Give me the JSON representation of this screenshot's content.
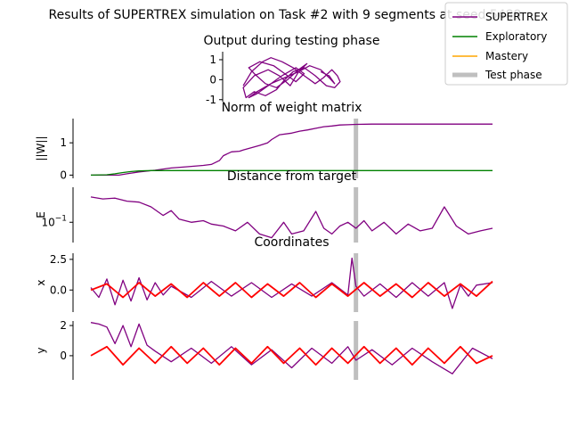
{
  "figure": {
    "suptitle": "Results of SUPERTREX simulation on Task #2 with 9 segments at seed 5489"
  },
  "legend": {
    "placement": "top-right",
    "entries": [
      {
        "label": "SUPERTREX",
        "color": "#800080",
        "style": "line"
      },
      {
        "label": "Exploratory",
        "color": "#008000",
        "style": "line"
      },
      {
        "label": "Mastery",
        "color": "#ffa500",
        "style": "line"
      },
      {
        "label": "Test phase",
        "color": "#bfbfbf",
        "style": "thick-line"
      }
    ]
  },
  "colors": {
    "supertrex": "#800080",
    "exploratory": "#008000",
    "mastery": "#ffa500",
    "target": "#ff0000",
    "test_phase": "#bfbfbf"
  },
  "chart_data": [
    {
      "type": "line",
      "title": "Output during testing phase",
      "xlabel": "",
      "ylabel": "",
      "ylim": [
        -1.1,
        1.4
      ],
      "y_ticks": [
        "1",
        "0",
        "-1"
      ],
      "description_series": [
        {
          "name": "SUPERTREX",
          "x": [
            -1.0,
            -0.7,
            -0.3,
            0.0,
            0.4,
            0.8,
            1.2,
            1.6,
            1.9,
            2.2,
            2.4,
            2.5,
            2.3,
            2.0,
            1.6,
            1.2,
            0.8,
            0.5,
            0.2,
            -0.2,
            -0.6,
            -0.9,
            -1.0,
            -0.6,
            -0.1,
            0.3,
            0.7,
            1.0,
            1.3,
            1.0,
            0.6,
            0.2,
            -0.2,
            -0.6,
            -0.8,
            -0.4,
            0.1,
            0.5,
            0.9,
            1.2,
            0.9,
            0.4,
            -0.1,
            -0.5,
            -0.8,
            -0.5,
            0.0,
            0.5,
            1.0,
            1.4,
            1.8,
            2.1,
            2.3,
            2.1,
            1.8
          ],
          "y": [
            -0.3,
            0.4,
            0.9,
            1.1,
            0.9,
            0.6,
            0.2,
            -0.2,
            0.1,
            0.5,
            0.2,
            -0.1,
            -0.4,
            -0.3,
            0.2,
            0.6,
            0.4,
            0.0,
            -0.5,
            -0.8,
            -0.6,
            -0.9,
            -0.4,
            0.2,
            0.5,
            0.2,
            -0.3,
            0.4,
            0.8,
            0.5,
            0.0,
            -0.4,
            -0.2,
            0.3,
            0.6,
            0.9,
            0.7,
            0.3,
            -0.1,
            0.3,
            0.6,
            0.2,
            -0.3,
            -0.7,
            -0.9,
            -0.6,
            -0.2,
            0.1,
            0.4,
            0.7,
            0.5,
            0.1,
            -0.2,
            0.2,
            0.4
          ]
        }
      ]
    },
    {
      "type": "line",
      "title": "Norm of weight matrix",
      "xlabel": "",
      "ylabel": "||W||",
      "ylim": [
        -0.1,
        1.75
      ],
      "y_ticks": [
        0,
        1
      ],
      "test_phase_at": 0.66,
      "series": [
        {
          "name": "SUPERTREX",
          "x": [
            0,
            0.04,
            0.07,
            0.09,
            0.12,
            0.16,
            0.2,
            0.24,
            0.28,
            0.3,
            0.32,
            0.33,
            0.35,
            0.37,
            0.38,
            0.4,
            0.42,
            0.44,
            0.45,
            0.47,
            0.5,
            0.52,
            0.54,
            0.56,
            0.58,
            0.6,
            0.62,
            0.64,
            0.66,
            0.7,
            0.8,
            0.9,
            1.0
          ],
          "y": [
            0.0,
            0.0,
            0.0,
            0.04,
            0.1,
            0.15,
            0.22,
            0.26,
            0.3,
            0.33,
            0.45,
            0.6,
            0.72,
            0.74,
            0.78,
            0.85,
            0.92,
            1.0,
            1.1,
            1.25,
            1.3,
            1.36,
            1.4,
            1.45,
            1.5,
            1.52,
            1.55,
            1.56,
            1.57,
            1.58,
            1.58,
            1.58,
            1.58
          ]
        },
        {
          "name": "Exploratory",
          "x": [
            0,
            0.04,
            0.06,
            0.08,
            0.1,
            0.12,
            0.15,
            0.2,
            0.3,
            0.4,
            0.5,
            0.66,
            0.8,
            1.0
          ],
          "y": [
            0.0,
            0.01,
            0.04,
            0.08,
            0.11,
            0.13,
            0.14,
            0.14,
            0.14,
            0.14,
            0.14,
            0.14,
            0.14,
            0.14
          ]
        }
      ]
    },
    {
      "type": "line",
      "title": "Distance from target",
      "xlabel": "",
      "ylabel": "E",
      "yscale": "log",
      "ylim": [
        0.03,
        0.8
      ],
      "y_ticks": [
        0.1
      ],
      "y_tick_labels": [
        "10^{-1}"
      ],
      "test_phase_at": 0.66,
      "series": [
        {
          "name": "SUPERTREX",
          "x": [
            0,
            0.03,
            0.06,
            0.09,
            0.12,
            0.15,
            0.18,
            0.2,
            0.22,
            0.25,
            0.28,
            0.3,
            0.33,
            0.36,
            0.39,
            0.42,
            0.45,
            0.48,
            0.5,
            0.53,
            0.56,
            0.58,
            0.6,
            0.62,
            0.64,
            0.66,
            0.68,
            0.7,
            0.73,
            0.76,
            0.79,
            0.82,
            0.85,
            0.88,
            0.91,
            0.94,
            0.97,
            1.0
          ],
          "y": [
            0.45,
            0.4,
            0.42,
            0.35,
            0.33,
            0.25,
            0.15,
            0.2,
            0.12,
            0.1,
            0.11,
            0.09,
            0.08,
            0.06,
            0.1,
            0.05,
            0.04,
            0.1,
            0.05,
            0.06,
            0.19,
            0.07,
            0.05,
            0.08,
            0.1,
            0.07,
            0.11,
            0.06,
            0.1,
            0.05,
            0.09,
            0.06,
            0.07,
            0.25,
            0.08,
            0.05,
            0.06,
            0.07
          ]
        }
      ]
    },
    {
      "type": "line",
      "title": "Coordinates",
      "xlabel": "",
      "ylabel": "x",
      "ylim": [
        -1.8,
        3.0
      ],
      "y_ticks": [
        0.0,
        2.5
      ],
      "y_tick_labels": [
        "0.0",
        "2.5"
      ],
      "test_phase_at": 0.66,
      "series": [
        {
          "name": "SUPERTREX",
          "x": [
            0,
            0.02,
            0.04,
            0.06,
            0.08,
            0.1,
            0.12,
            0.14,
            0.16,
            0.18,
            0.2,
            0.25,
            0.3,
            0.35,
            0.4,
            0.45,
            0.5,
            0.55,
            0.6,
            0.64,
            0.65,
            0.66,
            0.68,
            0.72,
            0.76,
            0.8,
            0.84,
            0.88,
            0.9,
            0.92,
            0.94,
            0.96,
            1.0
          ],
          "y": [
            0.2,
            -0.6,
            0.9,
            -1.2,
            0.8,
            -0.9,
            1.0,
            -0.8,
            0.6,
            -0.4,
            0.3,
            -0.6,
            0.7,
            -0.5,
            0.6,
            -0.6,
            0.5,
            -0.5,
            0.6,
            -0.4,
            2.6,
            0.3,
            -0.5,
            0.5,
            -0.6,
            0.6,
            -0.5,
            0.6,
            -1.5,
            0.4,
            -0.5,
            0.4,
            0.6
          ]
        },
        {
          "name": "Target",
          "x": [
            0,
            0.04,
            0.08,
            0.12,
            0.16,
            0.2,
            0.24,
            0.28,
            0.32,
            0.36,
            0.4,
            0.44,
            0.48,
            0.52,
            0.56,
            0.6,
            0.64,
            0.68,
            0.72,
            0.76,
            0.8,
            0.84,
            0.88,
            0.92,
            0.96,
            1.0
          ],
          "y": [
            0.0,
            0.5,
            -0.6,
            0.6,
            -0.5,
            0.5,
            -0.6,
            0.6,
            -0.5,
            0.6,
            -0.6,
            0.5,
            -0.5,
            0.6,
            -0.6,
            0.5,
            -0.5,
            0.6,
            -0.5,
            0.5,
            -0.6,
            0.6,
            -0.5,
            0.5,
            -0.5,
            0.7
          ]
        }
      ]
    },
    {
      "type": "line",
      "title": "",
      "xlabel": "",
      "ylabel": "y",
      "ylim": [
        -1.6,
        2.3
      ],
      "y_ticks": [
        0,
        2
      ],
      "test_phase_at": 0.66,
      "series": [
        {
          "name": "SUPERTREX",
          "x": [
            0,
            0.02,
            0.04,
            0.06,
            0.08,
            0.1,
            0.12,
            0.14,
            0.16,
            0.2,
            0.25,
            0.3,
            0.35,
            0.4,
            0.45,
            0.5,
            0.55,
            0.6,
            0.64,
            0.66,
            0.7,
            0.75,
            0.8,
            0.85,
            0.9,
            0.95,
            1.0
          ],
          "y": [
            2.2,
            2.1,
            1.9,
            0.8,
            2.0,
            0.6,
            2.1,
            0.7,
            0.3,
            -0.4,
            0.5,
            -0.5,
            0.6,
            -0.6,
            0.4,
            -0.8,
            0.5,
            -0.5,
            0.6,
            -0.3,
            0.4,
            -0.6,
            0.5,
            -0.4,
            -1.2,
            0.5,
            -0.2
          ]
        },
        {
          "name": "Target",
          "x": [
            0,
            0.04,
            0.08,
            0.12,
            0.16,
            0.2,
            0.24,
            0.28,
            0.32,
            0.36,
            0.4,
            0.44,
            0.48,
            0.52,
            0.56,
            0.6,
            0.64,
            0.68,
            0.72,
            0.76,
            0.8,
            0.84,
            0.88,
            0.92,
            0.96,
            1.0
          ],
          "y": [
            0.0,
            0.6,
            -0.6,
            0.5,
            -0.5,
            0.6,
            -0.5,
            0.5,
            -0.6,
            0.5,
            -0.5,
            0.6,
            -0.5,
            0.5,
            -0.6,
            0.5,
            -0.5,
            0.6,
            -0.5,
            0.5,
            -0.6,
            0.5,
            -0.5,
            0.6,
            -0.5,
            0.0
          ]
        }
      ]
    }
  ]
}
